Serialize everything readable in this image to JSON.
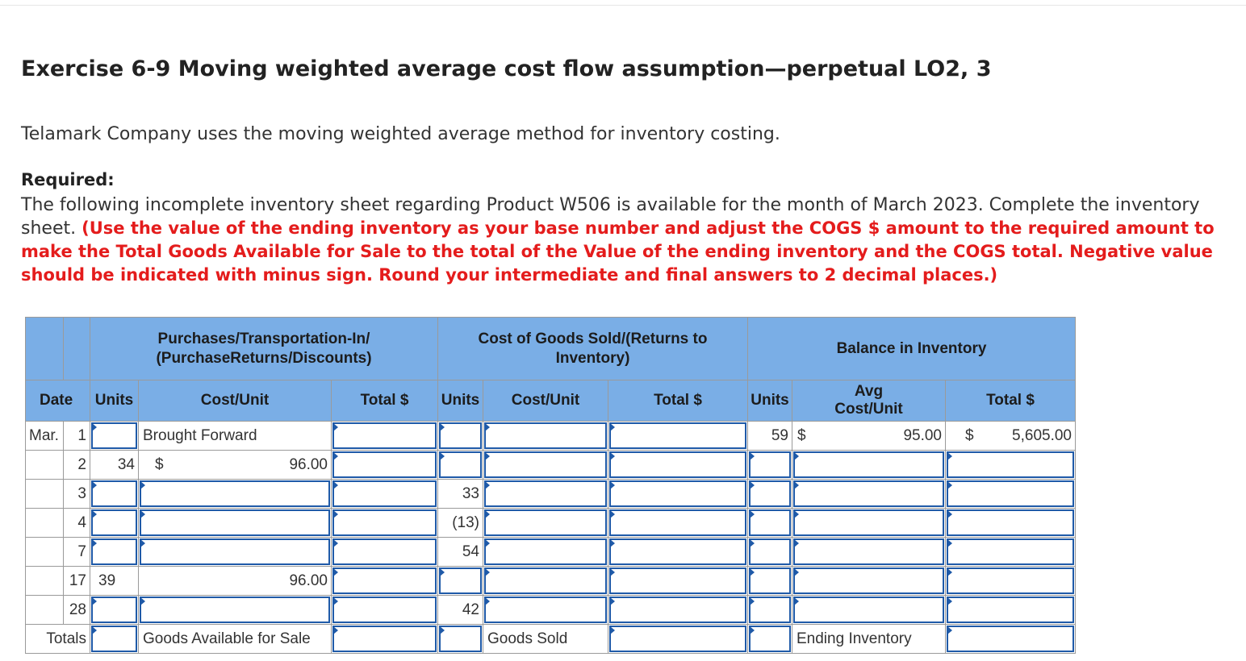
{
  "title": "Exercise 6-9 Moving weighted average cost flow assumption—perpetual LO2, 3",
  "intro": "Telamark Company uses the moving weighted average method for inventory costing.",
  "required_label": "Required:",
  "required_text": "The following incomplete inventory sheet regarding Product W506 is available for the month of March 2023. Complete the inventory sheet.",
  "required_instruction": "(Use the value of the ending inventory as your base number and adjust the COGS $ amount to the required amount to make the Total Goods Available for Sale to the total of the Value of the ending inventory and the COGS total. Negative value should be indicated with minus sign. Round your intermediate and final answers to 2 decimal places.)",
  "table": {
    "group_purchases": "Purchases/Transportation-In/ (PurchaseReturns/Discounts)",
    "group_cogs": "Cost of Goods Sold/(Returns to Inventory)",
    "group_balance": "Balance in Inventory",
    "col_date": "Date",
    "col_units": "Units",
    "col_cost_unit": "Cost/Unit",
    "col_total": "Total $",
    "col_avg_cost_unit": "Avg Cost/Unit",
    "month": "Mar.",
    "dollar_sign": "$",
    "rows": [
      {
        "day": "1",
        "p_cost_text": "Brought Forward",
        "b_units": "59",
        "b_avg": "95.00",
        "b_total": "5,605.00"
      },
      {
        "day": "2",
        "p_units": "34",
        "p_cost": "96.00"
      },
      {
        "day": "3",
        "c_units": "33"
      },
      {
        "day": "4",
        "c_units": "(13)"
      },
      {
        "day": "7",
        "c_units": "54"
      },
      {
        "day": "17",
        "p_units": "39",
        "p_cost": "96.00"
      },
      {
        "day": "28",
        "c_units": "42"
      }
    ],
    "totals_label": "Totals",
    "goods_available_label": "Goods Available for Sale",
    "goods_sold_label": "Goods Sold",
    "ending_inventory_label": "Ending Inventory"
  }
}
